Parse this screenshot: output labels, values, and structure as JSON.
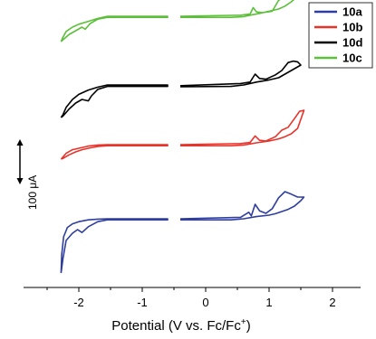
{
  "chart_data": {
    "type": "line",
    "xlabel_main": "Potential (V vs. Fc/Fc",
    "xlabel_sup": "+",
    "xlabel_tail": ")",
    "xlim": [
      -2.7,
      2.0
    ],
    "x_ticks": [
      -2,
      -1,
      0,
      1,
      2
    ],
    "x_tick_labels": [
      "-2",
      "-1",
      "0",
      "1",
      "2"
    ],
    "scale_bar_label": "100 μA",
    "legend": [
      "10a",
      "10b",
      "10d",
      "10c"
    ],
    "series": [
      {
        "name": "10c",
        "color": "#5cbf3a",
        "offset_uA": 560,
        "upper": [
          [
            -2.28,
            -70
          ],
          [
            -2.25,
            -58
          ],
          [
            -2.2,
            -42
          ],
          [
            -2.1,
            -30
          ],
          [
            -2.0,
            -22
          ],
          [
            -1.85,
            -14
          ],
          [
            -1.7,
            -6
          ],
          [
            -1.55,
            0
          ],
          [
            -0.6,
            0
          ]
        ],
        "lower": [
          [
            -2.28,
            -70
          ],
          [
            -2.25,
            -65
          ],
          [
            -2.15,
            -50
          ],
          [
            -2.05,
            -40
          ],
          [
            -1.95,
            -30
          ],
          [
            -1.9,
            -36
          ],
          [
            -1.82,
            -20
          ],
          [
            -1.7,
            -8
          ],
          [
            -1.55,
            -3
          ],
          [
            -0.6,
            -3
          ]
        ],
        "upper_r": [
          [
            -0.4,
            0
          ],
          [
            0.55,
            3
          ],
          [
            0.7,
            6
          ],
          [
            0.75,
            24
          ],
          [
            0.8,
            12
          ],
          [
            0.9,
            10
          ],
          [
            1.05,
            14
          ],
          [
            1.15,
            44
          ],
          [
            1.25,
            55
          ],
          [
            1.35,
            66
          ],
          [
            1.45,
            70
          ],
          [
            1.5,
            66
          ],
          [
            1.55,
            64
          ]
        ],
        "lower_r": [
          [
            -0.4,
            -3
          ],
          [
            0.4,
            -3
          ],
          [
            0.6,
            -1
          ],
          [
            0.7,
            3
          ],
          [
            0.85,
            8
          ],
          [
            1.05,
            16
          ],
          [
            1.15,
            20
          ],
          [
            1.25,
            28
          ],
          [
            1.35,
            40
          ],
          [
            1.45,
            55
          ],
          [
            1.55,
            64
          ]
        ]
      },
      {
        "name": "10d",
        "color": "#000000",
        "offset_uA": 370,
        "upper": [
          [
            -2.28,
            -90
          ],
          [
            -2.25,
            -82
          ],
          [
            -2.2,
            -62
          ],
          [
            -2.1,
            -40
          ],
          [
            -2.0,
            -26
          ],
          [
            -1.85,
            -14
          ],
          [
            -1.7,
            -6
          ],
          [
            -1.55,
            0
          ],
          [
            -0.6,
            0
          ]
        ],
        "lower": [
          [
            -2.28,
            -90
          ],
          [
            -2.25,
            -86
          ],
          [
            -2.15,
            -66
          ],
          [
            -2.05,
            -50
          ],
          [
            -1.95,
            -40
          ],
          [
            -1.85,
            -44
          ],
          [
            -1.8,
            -30
          ],
          [
            -1.7,
            -12
          ],
          [
            -1.55,
            -4
          ],
          [
            -0.6,
            -4
          ]
        ],
        "upper_r": [
          [
            -0.4,
            -2
          ],
          [
            0.55,
            4
          ],
          [
            0.7,
            8
          ],
          [
            0.78,
            30
          ],
          [
            0.85,
            18
          ],
          [
            0.95,
            16
          ],
          [
            1.1,
            28
          ],
          [
            1.2,
            40
          ],
          [
            1.3,
            62
          ],
          [
            1.38,
            66
          ],
          [
            1.45,
            64
          ],
          [
            1.5,
            55
          ]
        ],
        "lower_r": [
          [
            -0.4,
            -5
          ],
          [
            0.4,
            -4
          ],
          [
            0.6,
            0
          ],
          [
            0.8,
            8
          ],
          [
            1.0,
            14
          ],
          [
            1.15,
            20
          ],
          [
            1.25,
            30
          ],
          [
            1.35,
            40
          ],
          [
            1.45,
            50
          ],
          [
            1.5,
            55
          ]
        ]
      },
      {
        "name": "10b",
        "color": "#e8332b",
        "offset_uA": 205,
        "upper": [
          [
            -2.28,
            -40
          ],
          [
            -2.25,
            -34
          ],
          [
            -2.2,
            -24
          ],
          [
            -2.1,
            -14
          ],
          [
            -2.0,
            -10
          ],
          [
            -1.85,
            -4
          ],
          [
            -1.7,
            -1
          ],
          [
            -1.55,
            0
          ],
          [
            -0.6,
            0
          ]
        ],
        "lower": [
          [
            -2.28,
            -40
          ],
          [
            -2.25,
            -38
          ],
          [
            -2.15,
            -28
          ],
          [
            -2.05,
            -20
          ],
          [
            -1.95,
            -14
          ],
          [
            -1.85,
            -10
          ],
          [
            -1.7,
            -5
          ],
          [
            -1.55,
            -3
          ],
          [
            -0.6,
            -3
          ]
        ],
        "upper_r": [
          [
            -0.4,
            0
          ],
          [
            0.55,
            3
          ],
          [
            0.7,
            6
          ],
          [
            0.78,
            24
          ],
          [
            0.85,
            12
          ],
          [
            0.95,
            10
          ],
          [
            1.1,
            22
          ],
          [
            1.2,
            40
          ],
          [
            1.3,
            48
          ],
          [
            1.4,
            72
          ],
          [
            1.48,
            92
          ],
          [
            1.55,
            95
          ]
        ],
        "lower_r": [
          [
            -0.4,
            -3
          ],
          [
            0.4,
            -3
          ],
          [
            0.6,
            -1
          ],
          [
            0.8,
            5
          ],
          [
            1.0,
            10
          ],
          [
            1.15,
            16
          ],
          [
            1.25,
            22
          ],
          [
            1.35,
            30
          ],
          [
            1.45,
            45
          ],
          [
            1.55,
            95
          ]
        ]
      },
      {
        "name": "10a",
        "color": "#2f3e9e",
        "offset_uA": 0,
        "upper": [
          [
            -2.28,
            -150
          ],
          [
            -2.27,
            -100
          ],
          [
            -2.24,
            -50
          ],
          [
            -2.18,
            -24
          ],
          [
            -2.1,
            -14
          ],
          [
            -2.0,
            -8
          ],
          [
            -1.85,
            -3
          ],
          [
            -1.7,
            -1
          ],
          [
            -1.55,
            0
          ],
          [
            -0.6,
            0
          ]
        ],
        "lower": [
          [
            -2.28,
            -150
          ],
          [
            -2.25,
            -110
          ],
          [
            -2.2,
            -60
          ],
          [
            -2.1,
            -40
          ],
          [
            -2.02,
            -30
          ],
          [
            -1.95,
            -38
          ],
          [
            -1.85,
            -22
          ],
          [
            -1.7,
            -8
          ],
          [
            -1.55,
            -3
          ],
          [
            -0.6,
            -3
          ]
        ],
        "upper_r": [
          [
            -0.4,
            0
          ],
          [
            0.55,
            4
          ],
          [
            0.68,
            18
          ],
          [
            0.72,
            8
          ],
          [
            0.78,
            40
          ],
          [
            0.85,
            22
          ],
          [
            0.95,
            15
          ],
          [
            1.05,
            28
          ],
          [
            1.15,
            58
          ],
          [
            1.25,
            75
          ],
          [
            1.35,
            68
          ],
          [
            1.45,
            60
          ],
          [
            1.55,
            60
          ]
        ],
        "lower_r": [
          [
            -0.4,
            -3
          ],
          [
            0.4,
            -3
          ],
          [
            0.6,
            0
          ],
          [
            0.8,
            6
          ],
          [
            1.0,
            10
          ],
          [
            1.1,
            14
          ],
          [
            1.2,
            20
          ],
          [
            1.3,
            26
          ],
          [
            1.4,
            35
          ],
          [
            1.5,
            50
          ],
          [
            1.55,
            60
          ]
        ]
      }
    ]
  }
}
